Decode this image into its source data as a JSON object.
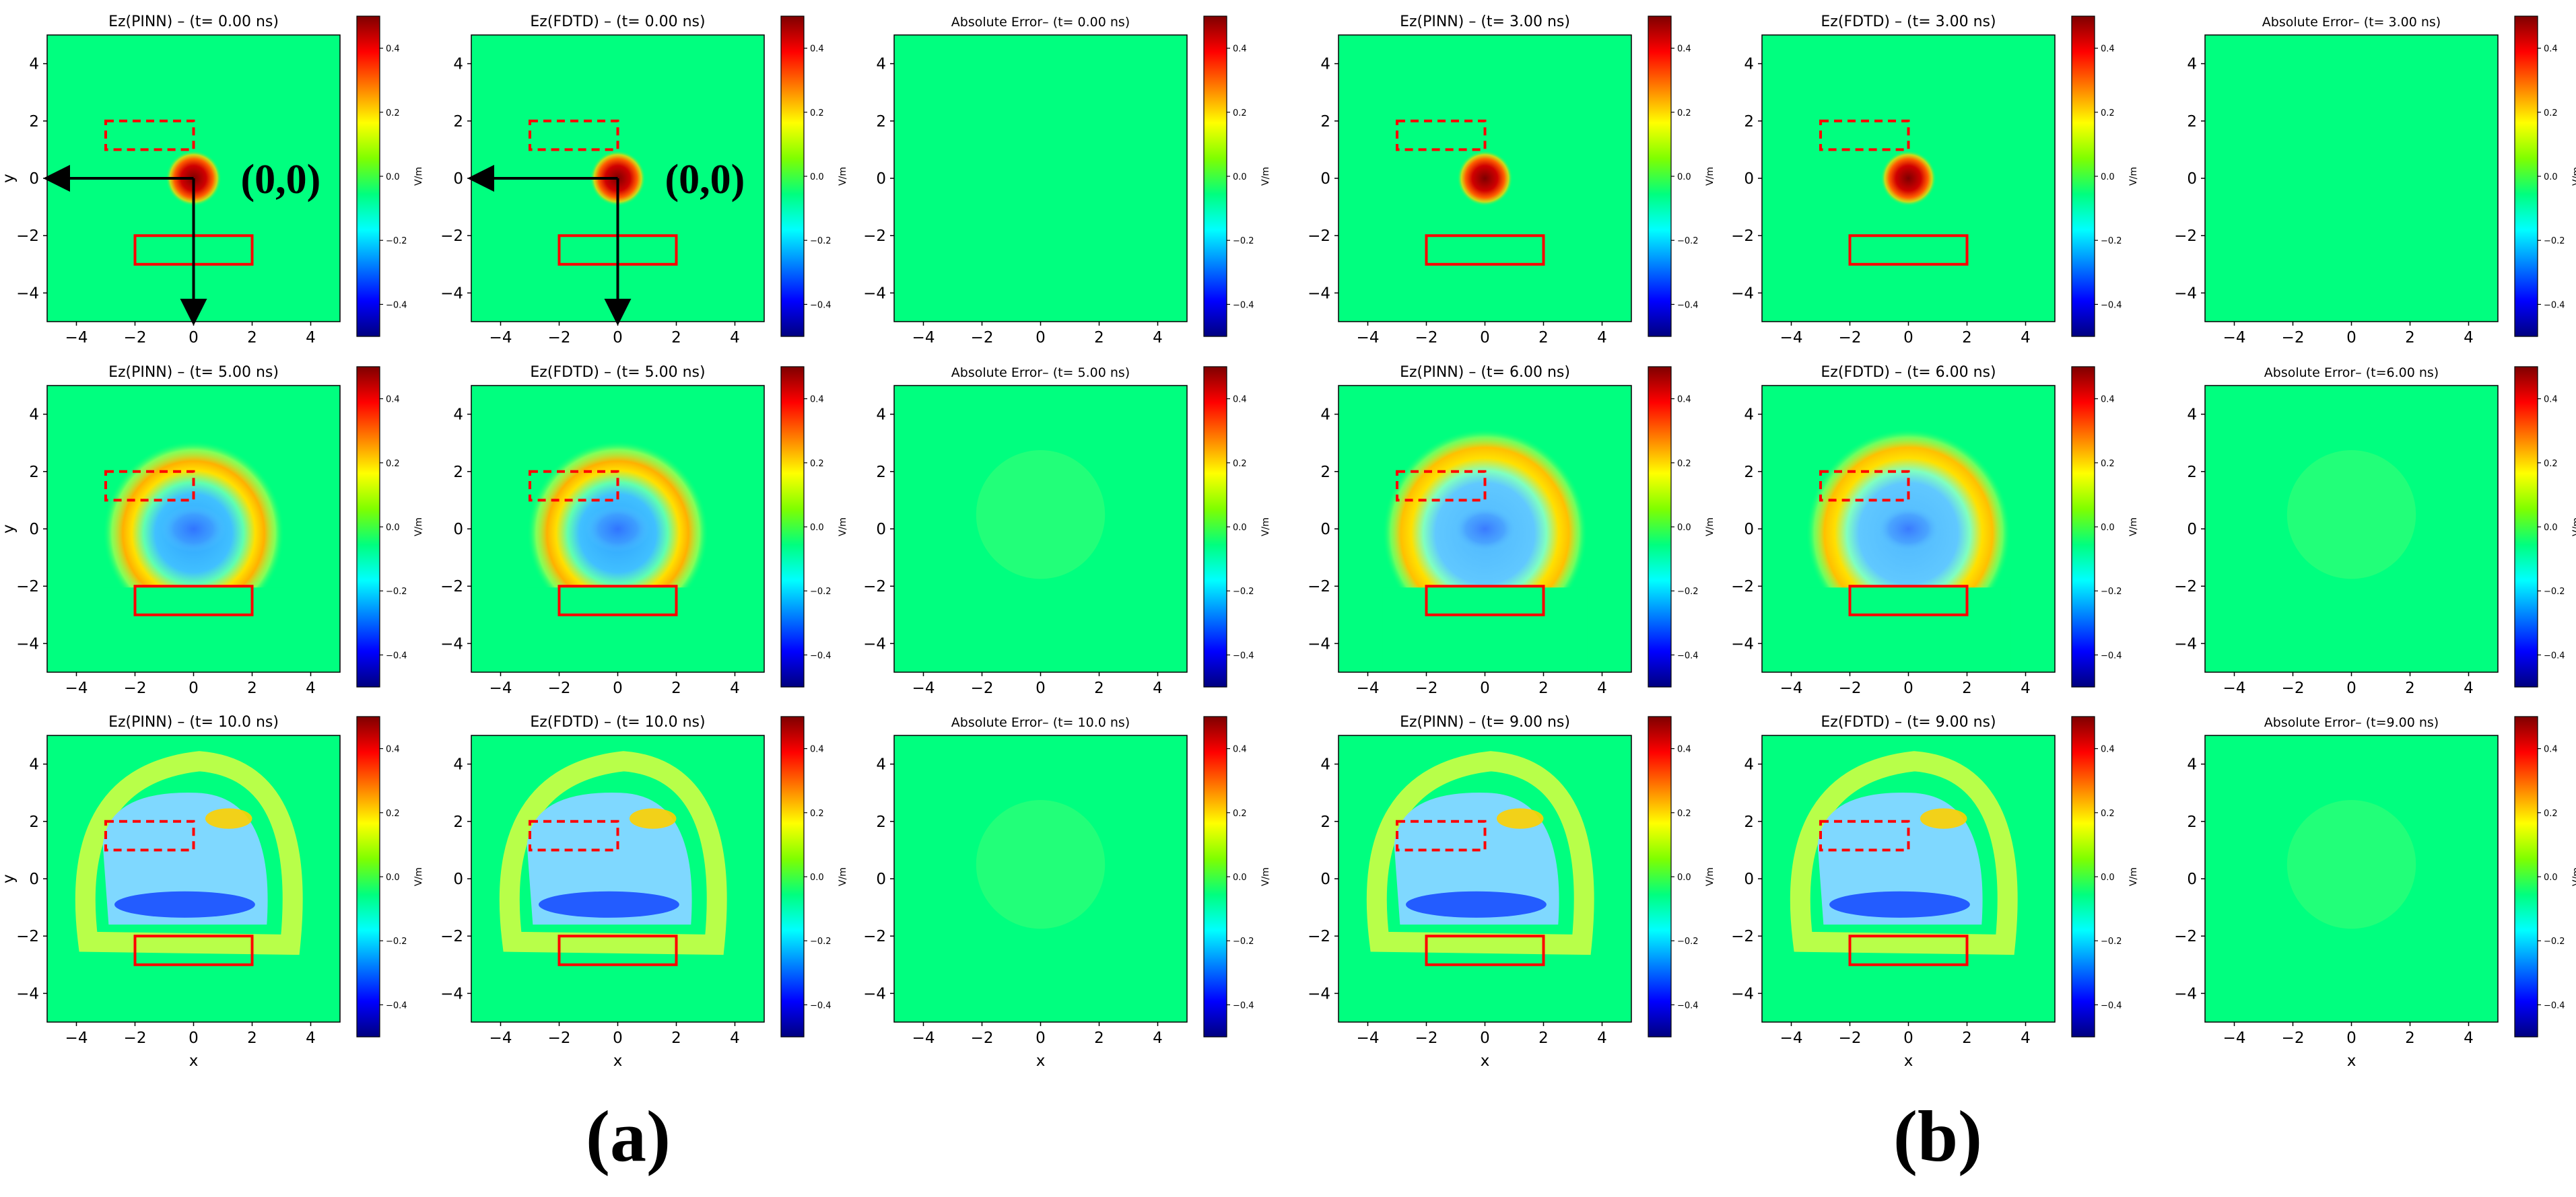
{
  "figure": {
    "group_labels": [
      "(a)",
      "(b)"
    ],
    "origin_label": "(0,0)",
    "colorbar_unit": "V/m",
    "colorbar_ticks": [
      "0.4",
      "0.2",
      "0.0",
      "−0.2",
      "−0.4"
    ],
    "colormap": [
      "#00007f",
      "#0000ff",
      "#007fff",
      "#00ffff",
      "#00ff7f",
      "#7fff00",
      "#ffff00",
      "#ff7f00",
      "#ff0000",
      "#7f0000"
    ],
    "background_color": "#00ff7f",
    "box_color": "#ff0000",
    "arrow_color": "#000000"
  },
  "chart_data": [
    {
      "type": "heatmap",
      "title": "Ez(PINN) – (t= 0.00 ns)",
      "xlabel": "",
      "ylabel": "y",
      "xlim": [
        -5,
        5
      ],
      "ylim": [
        -5,
        5
      ],
      "xticks": [
        "−4",
        "−2",
        "0",
        "2",
        "4"
      ],
      "yticks": [
        "4",
        "2",
        "0",
        "−2",
        "−4"
      ],
      "colorbar_range": [
        -0.5,
        0.5
      ],
      "source_center": [
        0,
        0
      ],
      "dashed_box": [
        [
          -3,
          1
        ],
        [
          0,
          2
        ]
      ],
      "solid_box": [
        [
          -2,
          -3
        ],
        [
          2,
          -2
        ]
      ],
      "origin_marker": true
    },
    {
      "type": "heatmap",
      "title": "Ez(FDTD) – (t= 0.00 ns)",
      "xlabel": "",
      "ylabel": "",
      "xlim": [
        -5,
        5
      ],
      "ylim": [
        -5,
        5
      ],
      "xticks": [
        "−4",
        "−2",
        "0",
        "2",
        "4"
      ],
      "yticks": [
        "4",
        "2",
        "0",
        "−2",
        "−4"
      ],
      "colorbar_range": [
        -0.5,
        0.5
      ],
      "source_center": [
        0,
        0
      ],
      "dashed_box": [
        [
          -3,
          1
        ],
        [
          0,
          2
        ]
      ],
      "solid_box": [
        [
          -2,
          -3
        ],
        [
          2,
          -2
        ]
      ],
      "origin_marker": true
    },
    {
      "type": "heatmap",
      "title": "Absolute Error– (t= 0.00 ns)",
      "xlabel": "",
      "ylabel": "",
      "xlim": [
        -5,
        5
      ],
      "ylim": [
        -5,
        5
      ],
      "xticks": [
        "−4",
        "−2",
        "0",
        "2",
        "4"
      ],
      "yticks": [
        "4",
        "2",
        "0",
        "−2",
        "−4"
      ],
      "colorbar_range": [
        -0.5,
        0.5
      ]
    },
    {
      "type": "heatmap",
      "title": "Ez(PINN) – (t= 3.00 ns)",
      "xlabel": "",
      "ylabel": "",
      "xlim": [
        -5,
        5
      ],
      "ylim": [
        -5,
        5
      ],
      "xticks": [
        "−4",
        "−2",
        "0",
        "2",
        "4"
      ],
      "yticks": [
        "4",
        "2",
        "0",
        "−2",
        "−4"
      ],
      "colorbar_range": [
        -0.5,
        0.5
      ],
      "dashed_box": [
        [
          -3,
          1
        ],
        [
          0,
          2
        ]
      ],
      "solid_box": [
        [
          -2,
          -3
        ],
        [
          2,
          -2
        ]
      ]
    },
    {
      "type": "heatmap",
      "title": "Ez(FDTD) – (t= 3.00 ns)",
      "xlabel": "",
      "ylabel": "",
      "xlim": [
        -5,
        5
      ],
      "ylim": [
        -5,
        5
      ],
      "xticks": [
        "−4",
        "−2",
        "0",
        "2",
        "4"
      ],
      "yticks": [
        "4",
        "2",
        "0",
        "−2",
        "−4"
      ],
      "colorbar_range": [
        -0.5,
        0.5
      ],
      "dashed_box": [
        [
          -3,
          1
        ],
        [
          0,
          2
        ]
      ],
      "solid_box": [
        [
          -2,
          -3
        ],
        [
          2,
          -2
        ]
      ]
    },
    {
      "type": "heatmap",
      "title": "Absolute Error– (t= 3.00 ns)",
      "xlabel": "",
      "ylabel": "",
      "xlim": [
        -5,
        5
      ],
      "ylim": [
        -5,
        5
      ],
      "xticks": [
        "−4",
        "−2",
        "0",
        "2",
        "4"
      ],
      "yticks": [
        "4",
        "2",
        "0",
        "−2",
        "−4"
      ],
      "colorbar_range": [
        -0.5,
        0.5
      ]
    },
    {
      "type": "heatmap",
      "title": "Ez(PINN) – (t= 5.00 ns)",
      "xlabel": "",
      "ylabel": "y",
      "xlim": [
        -5,
        5
      ],
      "ylim": [
        -5,
        5
      ],
      "xticks": [
        "−4",
        "−2",
        "0",
        "2",
        "4"
      ],
      "yticks": [
        "4",
        "2",
        "0",
        "−2",
        "−4"
      ],
      "colorbar_range": [
        -0.5,
        0.5
      ],
      "dashed_box": [
        [
          -3,
          1
        ],
        [
          0,
          2
        ]
      ],
      "solid_box": [
        [
          -2,
          -3
        ],
        [
          2,
          -2
        ]
      ]
    },
    {
      "type": "heatmap",
      "title": "Ez(FDTD) – (t= 5.00 ns)",
      "xlabel": "",
      "ylabel": "",
      "xlim": [
        -5,
        5
      ],
      "ylim": [
        -5,
        5
      ],
      "xticks": [
        "−4",
        "−2",
        "0",
        "2",
        "4"
      ],
      "yticks": [
        "4",
        "2",
        "0",
        "−2",
        "−4"
      ],
      "colorbar_range": [
        -0.5,
        0.5
      ],
      "dashed_box": [
        [
          -3,
          1
        ],
        [
          0,
          2
        ]
      ],
      "solid_box": [
        [
          -2,
          -3
        ],
        [
          2,
          -2
        ]
      ]
    },
    {
      "type": "heatmap",
      "title": "Absolute Error– (t= 5.00 ns)",
      "xlabel": "",
      "ylabel": "",
      "xlim": [
        -5,
        5
      ],
      "ylim": [
        -5,
        5
      ],
      "xticks": [
        "−4",
        "−2",
        "0",
        "2",
        "4"
      ],
      "yticks": [
        "4",
        "2",
        "0",
        "−2",
        "−4"
      ],
      "colorbar_range": [
        -0.5,
        0.5
      ]
    },
    {
      "type": "heatmap",
      "title": "Ez(PINN) – (t= 6.00 ns)",
      "xlabel": "",
      "ylabel": "",
      "xlim": [
        -5,
        5
      ],
      "ylim": [
        -5,
        5
      ],
      "xticks": [
        "−4",
        "−2",
        "0",
        "2",
        "4"
      ],
      "yticks": [
        "4",
        "2",
        "0",
        "−2",
        "−4"
      ],
      "colorbar_range": [
        -0.5,
        0.5
      ],
      "dashed_box": [
        [
          -3,
          1
        ],
        [
          0,
          2
        ]
      ],
      "solid_box": [
        [
          -2,
          -3
        ],
        [
          2,
          -2
        ]
      ]
    },
    {
      "type": "heatmap",
      "title": "Ez(FDTD) – (t= 6.00 ns)",
      "xlabel": "",
      "ylabel": "",
      "xlim": [
        -5,
        5
      ],
      "ylim": [
        -5,
        5
      ],
      "xticks": [
        "−4",
        "−2",
        "0",
        "2",
        "4"
      ],
      "yticks": [
        "4",
        "2",
        "0",
        "−2",
        "−4"
      ],
      "colorbar_range": [
        -0.5,
        0.5
      ],
      "dashed_box": [
        [
          -3,
          1
        ],
        [
          0,
          2
        ]
      ],
      "solid_box": [
        [
          -2,
          -3
        ],
        [
          2,
          -2
        ]
      ]
    },
    {
      "type": "heatmap",
      "title": "Absolute Error– (t=6.00 ns)",
      "xlabel": "",
      "ylabel": "",
      "xlim": [
        -5,
        5
      ],
      "ylim": [
        -5,
        5
      ],
      "xticks": [
        "−4",
        "−2",
        "0",
        "2",
        "4"
      ],
      "yticks": [
        "4",
        "2",
        "0",
        "−2",
        "−4"
      ],
      "colorbar_range": [
        -0.5,
        0.5
      ]
    },
    {
      "type": "heatmap",
      "title": "Ez(PINN) – (t= 10.0 ns)",
      "xlabel": "x",
      "ylabel": "y",
      "xlim": [
        -5,
        5
      ],
      "ylim": [
        -5,
        5
      ],
      "xticks": [
        "−4",
        "−2",
        "0",
        "2",
        "4"
      ],
      "yticks": [
        "4",
        "2",
        "0",
        "−2",
        "−4"
      ],
      "colorbar_range": [
        -0.5,
        0.5
      ],
      "dashed_box": [
        [
          -3,
          1
        ],
        [
          0,
          2
        ]
      ],
      "solid_box": [
        [
          -2,
          -3
        ],
        [
          2,
          -2
        ]
      ]
    },
    {
      "type": "heatmap",
      "title": "Ez(FDTD) – (t= 10.0 ns)",
      "xlabel": "x",
      "ylabel": "",
      "xlim": [
        -5,
        5
      ],
      "ylim": [
        -5,
        5
      ],
      "xticks": [
        "−4",
        "−2",
        "0",
        "2",
        "4"
      ],
      "yticks": [
        "4",
        "2",
        "0",
        "−2",
        "−4"
      ],
      "colorbar_range": [
        -0.5,
        0.5
      ],
      "dashed_box": [
        [
          -3,
          1
        ],
        [
          0,
          2
        ]
      ],
      "solid_box": [
        [
          -2,
          -3
        ],
        [
          2,
          -2
        ]
      ]
    },
    {
      "type": "heatmap",
      "title": "Absolute Error– (t= 10.0 ns)",
      "xlabel": "x",
      "ylabel": "",
      "xlim": [
        -5,
        5
      ],
      "ylim": [
        -5,
        5
      ],
      "xticks": [
        "−4",
        "−2",
        "0",
        "2",
        "4"
      ],
      "yticks": [
        "4",
        "2",
        "0",
        "−2",
        "−4"
      ],
      "colorbar_range": [
        -0.5,
        0.5
      ]
    },
    {
      "type": "heatmap",
      "title": "Ez(PINN) – (t= 9.00 ns)",
      "xlabel": "x",
      "ylabel": "",
      "xlim": [
        -5,
        5
      ],
      "ylim": [
        -5,
        5
      ],
      "xticks": [
        "−4",
        "−2",
        "0",
        "2",
        "4"
      ],
      "yticks": [
        "4",
        "2",
        "0",
        "−2",
        "−4"
      ],
      "colorbar_range": [
        -0.5,
        0.5
      ],
      "dashed_box": [
        [
          -3,
          1
        ],
        [
          0,
          2
        ]
      ],
      "solid_box": [
        [
          -2,
          -3
        ],
        [
          2,
          -2
        ]
      ]
    },
    {
      "type": "heatmap",
      "title": "Ez(FDTD) – (t= 9.00 ns)",
      "xlabel": "x",
      "ylabel": "",
      "xlim": [
        -5,
        5
      ],
      "ylim": [
        -5,
        5
      ],
      "xticks": [
        "−4",
        "−2",
        "0",
        "2",
        "4"
      ],
      "yticks": [
        "4",
        "2",
        "0",
        "−2",
        "−4"
      ],
      "colorbar_range": [
        -0.5,
        0.5
      ],
      "dashed_box": [
        [
          -3,
          1
        ],
        [
          0,
          2
        ]
      ],
      "solid_box": [
        [
          -2,
          -3
        ],
        [
          2,
          -2
        ]
      ]
    },
    {
      "type": "heatmap",
      "title": "Absolute Error– (t=9.00 ns)",
      "xlabel": "x",
      "ylabel": "",
      "xlim": [
        -5,
        5
      ],
      "ylim": [
        -5,
        5
      ],
      "xticks": [
        "−4",
        "−2",
        "0",
        "2",
        "4"
      ],
      "yticks": [
        "4",
        "2",
        "0",
        "−2",
        "−4"
      ],
      "colorbar_range": [
        -0.5,
        0.5
      ]
    }
  ]
}
